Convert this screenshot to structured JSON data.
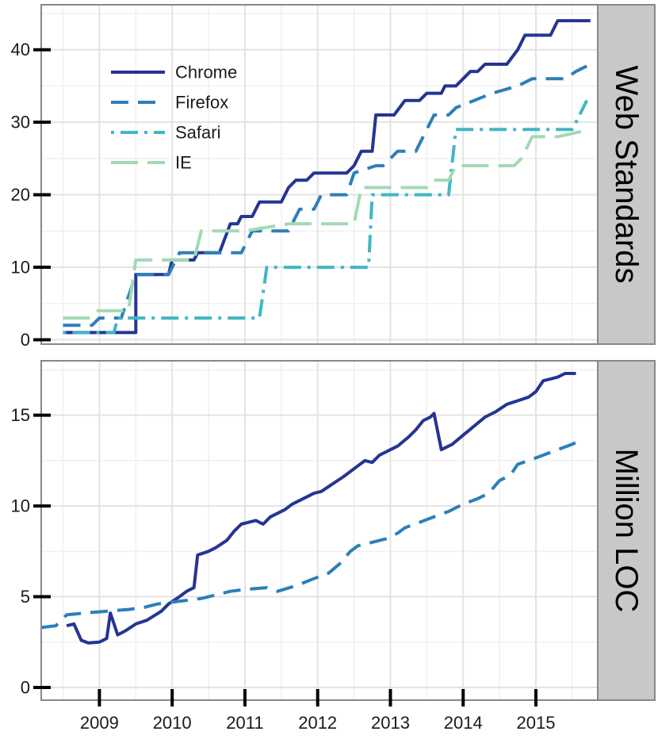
{
  "chart_data": [
    {
      "type": "line",
      "title": "",
      "strip_label": "Web Standards",
      "xlabel": "",
      "ylabel": "",
      "xlim": [
        2008.2,
        2015.85
      ],
      "ylim": [
        -0.6,
        46.2
      ],
      "y_ticks": [
        0,
        10,
        20,
        30,
        40
      ],
      "grid": true,
      "legend_position": "top-left",
      "series": [
        {
          "name": "Chrome",
          "color": "#253494",
          "dash": "solid",
          "points": [
            [
              2008.5,
              1
            ],
            [
              2009.1,
              1
            ],
            [
              2009.2,
              1
            ],
            [
              2009.5,
              1
            ],
            [
              2009.5,
              9
            ],
            [
              2009.95,
              9
            ],
            [
              2010.0,
              11
            ],
            [
              2010.3,
              11
            ],
            [
              2010.35,
              12
            ],
            [
              2010.65,
              12
            ],
            [
              2010.8,
              16
            ],
            [
              2010.9,
              16
            ],
            [
              2010.95,
              17
            ],
            [
              2011.1,
              17
            ],
            [
              2011.2,
              19
            ],
            [
              2011.5,
              19
            ],
            [
              2011.6,
              21
            ],
            [
              2011.7,
              22
            ],
            [
              2011.85,
              22
            ],
            [
              2011.95,
              23
            ],
            [
              2012.4,
              23
            ],
            [
              2012.5,
              24
            ],
            [
              2012.6,
              26
            ],
            [
              2012.75,
              26
            ],
            [
              2012.8,
              31
            ],
            [
              2013.05,
              31
            ],
            [
              2013.2,
              33
            ],
            [
              2013.4,
              33
            ],
            [
              2013.5,
              34
            ],
            [
              2013.7,
              34
            ],
            [
              2013.75,
              35
            ],
            [
              2013.9,
              35
            ],
            [
              2014.1,
              37
            ],
            [
              2014.2,
              37
            ],
            [
              2014.3,
              38
            ],
            [
              2014.6,
              38
            ],
            [
              2014.75,
              40
            ],
            [
              2014.85,
              42
            ],
            [
              2015.2,
              42
            ],
            [
              2015.3,
              44
            ],
            [
              2015.75,
              44
            ]
          ]
        },
        {
          "name": "Firefox",
          "color": "#2c7fb8",
          "dash": "dashed",
          "points": [
            [
              2008.5,
              2
            ],
            [
              2008.9,
              2
            ],
            [
              2009.0,
              3
            ],
            [
              2009.3,
              3
            ],
            [
              2009.5,
              9
            ],
            [
              2009.95,
              9
            ],
            [
              2010.05,
              11
            ],
            [
              2010.1,
              12
            ],
            [
              2010.3,
              12
            ],
            [
              2010.95,
              12
            ],
            [
              2011.1,
              15
            ],
            [
              2011.6,
              15
            ],
            [
              2011.75,
              18
            ],
            [
              2011.95,
              18
            ],
            [
              2012.05,
              20
            ],
            [
              2012.4,
              20
            ],
            [
              2012.5,
              23
            ],
            [
              2012.8,
              24
            ],
            [
              2012.9,
              24
            ],
            [
              2013.1,
              26
            ],
            [
              2013.35,
              26
            ],
            [
              2013.6,
              31
            ],
            [
              2013.8,
              31
            ],
            [
              2013.9,
              32
            ],
            [
              2014.4,
              34
            ],
            [
              2014.75,
              35
            ],
            [
              2014.95,
              36
            ],
            [
              2015.4,
              36
            ],
            [
              2015.55,
              37
            ],
            [
              2015.75,
              38
            ]
          ]
        },
        {
          "name": "Safari",
          "color": "#41b6c4",
          "dash": "dotdash",
          "points": [
            [
              2008.5,
              1
            ],
            [
              2009.2,
              1
            ],
            [
              2009.25,
              3
            ],
            [
              2011.2,
              3
            ],
            [
              2011.3,
              10
            ],
            [
              2012.7,
              10
            ],
            [
              2012.75,
              20
            ],
            [
              2013.5,
              20
            ],
            [
              2013.8,
              20
            ],
            [
              2013.9,
              29
            ],
            [
              2014.1,
              29
            ],
            [
              2014.6,
              29
            ],
            [
              2015.5,
              29
            ],
            [
              2015.7,
              33
            ]
          ]
        },
        {
          "name": "IE",
          "color": "#a1dab4",
          "dash": "longdash",
          "points": [
            [
              2008.5,
              3
            ],
            [
              2008.85,
              3
            ],
            [
              2008.95,
              4
            ],
            [
              2009.4,
              4
            ],
            [
              2009.5,
              11
            ],
            [
              2010.3,
              11
            ],
            [
              2010.4,
              15
            ],
            [
              2011.0,
              15
            ],
            [
              2011.6,
              16
            ],
            [
              2012.5,
              16
            ],
            [
              2012.6,
              21
            ],
            [
              2013.5,
              21
            ],
            [
              2013.6,
              22
            ],
            [
              2013.8,
              22
            ],
            [
              2013.9,
              24
            ],
            [
              2014.7,
              24
            ],
            [
              2014.8,
              25
            ],
            [
              2014.95,
              28
            ],
            [
              2015.3,
              28
            ],
            [
              2015.75,
              29
            ]
          ]
        }
      ]
    },
    {
      "type": "line",
      "title": "",
      "strip_label": "Million LOC",
      "xlabel": "",
      "ylabel": "",
      "xlim": [
        2008.2,
        2015.85
      ],
      "ylim": [
        -0.7,
        18.0
      ],
      "y_ticks": [
        0,
        5,
        10,
        15
      ],
      "x_ticks": [
        2009,
        2010,
        2011,
        2012,
        2013,
        2014,
        2015
      ],
      "x_tick_labels": [
        "2009",
        "2010",
        "2011",
        "2012",
        "2013",
        "2014",
        "2015"
      ],
      "grid": true,
      "series": [
        {
          "name": "Chrome",
          "color": "#253494",
          "dash": "solid",
          "points": [
            [
              2008.55,
              3.4
            ],
            [
              2008.65,
              3.5
            ],
            [
              2008.75,
              2.6
            ],
            [
              2008.85,
              2.45
            ],
            [
              2009.0,
              2.5
            ],
            [
              2009.1,
              2.7
            ],
            [
              2009.15,
              4.1
            ],
            [
              2009.25,
              2.9
            ],
            [
              2009.35,
              3.1
            ],
            [
              2009.5,
              3.5
            ],
            [
              2009.65,
              3.7
            ],
            [
              2009.85,
              4.2
            ],
            [
              2009.95,
              4.6
            ],
            [
              2010.1,
              5.0
            ],
            [
              2010.2,
              5.3
            ],
            [
              2010.3,
              5.5
            ],
            [
              2010.35,
              7.3
            ],
            [
              2010.5,
              7.5
            ],
            [
              2010.6,
              7.7
            ],
            [
              2010.75,
              8.1
            ],
            [
              2010.85,
              8.6
            ],
            [
              2010.95,
              9.0
            ],
            [
              2011.05,
              9.1
            ],
            [
              2011.15,
              9.2
            ],
            [
              2011.25,
              9.0
            ],
            [
              2011.35,
              9.4
            ],
            [
              2011.45,
              9.6
            ],
            [
              2011.55,
              9.8
            ],
            [
              2011.65,
              10.1
            ],
            [
              2011.8,
              10.4
            ],
            [
              2011.95,
              10.7
            ],
            [
              2012.05,
              10.8
            ],
            [
              2012.2,
              11.2
            ],
            [
              2012.35,
              11.6
            ],
            [
              2012.45,
              11.9
            ],
            [
              2012.55,
              12.2
            ],
            [
              2012.65,
              12.5
            ],
            [
              2012.75,
              12.4
            ],
            [
              2012.85,
              12.8
            ],
            [
              2013.0,
              13.1
            ],
            [
              2013.1,
              13.3
            ],
            [
              2013.25,
              13.8
            ],
            [
              2013.35,
              14.2
            ],
            [
              2013.45,
              14.7
            ],
            [
              2013.55,
              14.9
            ],
            [
              2013.6,
              15.1
            ],
            [
              2013.7,
              13.1
            ],
            [
              2013.85,
              13.4
            ],
            [
              2014.0,
              13.9
            ],
            [
              2014.15,
              14.4
            ],
            [
              2014.3,
              14.9
            ],
            [
              2014.45,
              15.2
            ],
            [
              2014.6,
              15.6
            ],
            [
              2014.75,
              15.8
            ],
            [
              2014.9,
              16.0
            ],
            [
              2015.0,
              16.3
            ],
            [
              2015.1,
              16.9
            ],
            [
              2015.2,
              17.0
            ],
            [
              2015.3,
              17.1
            ],
            [
              2015.4,
              17.3
            ],
            [
              2015.55,
              17.3
            ]
          ]
        },
        {
          "name": "Firefox",
          "color": "#2c7fb8",
          "dash": "dashed",
          "points": [
            [
              2008.2,
              3.3
            ],
            [
              2008.4,
              3.4
            ],
            [
              2008.55,
              4.0
            ],
            [
              2008.8,
              4.1
            ],
            [
              2009.1,
              4.2
            ],
            [
              2009.4,
              4.3
            ],
            [
              2009.6,
              4.4
            ],
            [
              2009.8,
              4.6
            ],
            [
              2010.0,
              4.7
            ],
            [
              2010.2,
              4.8
            ],
            [
              2010.4,
              4.9
            ],
            [
              2010.6,
              5.1
            ],
            [
              2010.8,
              5.3
            ],
            [
              2011.0,
              5.4
            ],
            [
              2011.3,
              5.5
            ],
            [
              2011.45,
              5.3
            ],
            [
              2011.7,
              5.6
            ],
            [
              2011.95,
              6.0
            ],
            [
              2012.15,
              6.3
            ],
            [
              2012.3,
              6.8
            ],
            [
              2012.45,
              7.5
            ],
            [
              2012.55,
              7.8
            ],
            [
              2012.75,
              8.0
            ],
            [
              2012.95,
              8.2
            ],
            [
              2013.1,
              8.5
            ],
            [
              2013.2,
              8.8
            ],
            [
              2013.4,
              9.1
            ],
            [
              2013.6,
              9.4
            ],
            [
              2013.8,
              9.7
            ],
            [
              2014.0,
              10.1
            ],
            [
              2014.2,
              10.4
            ],
            [
              2014.35,
              10.7
            ],
            [
              2014.5,
              11.4
            ],
            [
              2014.65,
              11.7
            ],
            [
              2014.75,
              12.3
            ],
            [
              2014.9,
              12.5
            ],
            [
              2015.1,
              12.8
            ],
            [
              2015.3,
              13.1
            ],
            [
              2015.5,
              13.4
            ],
            [
              2015.65,
              13.7
            ]
          ]
        }
      ]
    }
  ]
}
